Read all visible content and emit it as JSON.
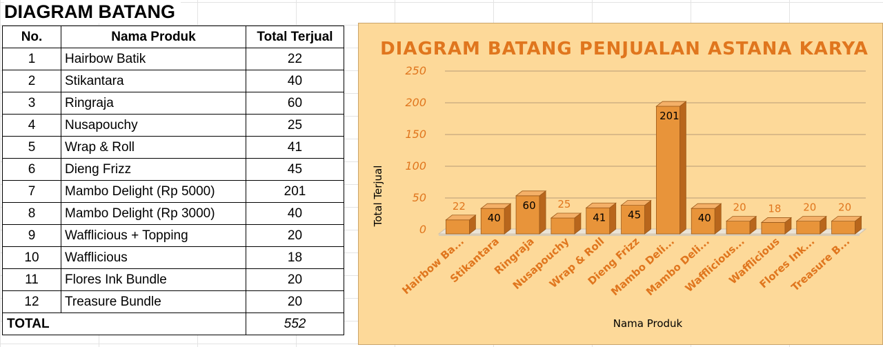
{
  "sheet": {
    "title": "DIAGRAM BATANG",
    "headers": {
      "no": "No.",
      "name": "Nama Produk",
      "total": "Total Terjual"
    },
    "rows": [
      {
        "no": "1",
        "name": "Hairbow Batik",
        "total": "22"
      },
      {
        "no": "2",
        "name": "Stikantara",
        "total": "40"
      },
      {
        "no": "3",
        "name": "Ringraja",
        "total": "60"
      },
      {
        "no": "4",
        "name": "Nusapouchy",
        "total": "25"
      },
      {
        "no": "5",
        "name": "Wrap & Roll",
        "total": "41"
      },
      {
        "no": "6",
        "name": "Dieng Frizz",
        "total": "45"
      },
      {
        "no": "7",
        "name": "Mambo Delight (Rp 5000)",
        "total": "201"
      },
      {
        "no": "8",
        "name": "Mambo Delight (Rp 3000)",
        "total": "40"
      },
      {
        "no": "9",
        "name": "Wafflicious  + Topping",
        "total": "20"
      },
      {
        "no": "10",
        "name": "Wafflicious",
        "total": "18"
      },
      {
        "no": "11",
        "name": "Flores Ink Bundle",
        "total": "20"
      },
      {
        "no": "12",
        "name": "Treasure Bundle",
        "total": "20"
      }
    ],
    "total_label": "TOTAL",
    "total_value": "552"
  },
  "chart_data": {
    "type": "bar",
    "title": "DIAGRAM BATANG PENJUALAN ASTANA KARYA",
    "xlabel": "Nama Produk",
    "ylabel": "Total Terjual",
    "categories": [
      "Hairbow Ba...",
      "Stikantara",
      "Ringraja",
      "Nusapouchy",
      "Wrap & Roll",
      "Dieng Frizz",
      "Mambo Deli...",
      "Mambo Deli...",
      "Wafflicious...",
      "Wafflicious",
      "Flores Ink...",
      "Treasure B..."
    ],
    "values": [
      22,
      40,
      60,
      25,
      41,
      45,
      201,
      40,
      20,
      18,
      20,
      20
    ],
    "ylim": [
      0,
      250
    ],
    "yticks": [
      0,
      50,
      100,
      150,
      200,
      250
    ],
    "grid": true,
    "legend": "none",
    "style": "3d-bar",
    "colors": {
      "bar_front": "#e8943a",
      "bar_side": "#b8661c",
      "bar_top": "#f4b068",
      "bar_outline": "#9c5a1a",
      "floor": "#ece4d6",
      "gridline": "#b89a78",
      "background": "#fdd999",
      "accent_text": "#e0761e"
    }
  }
}
